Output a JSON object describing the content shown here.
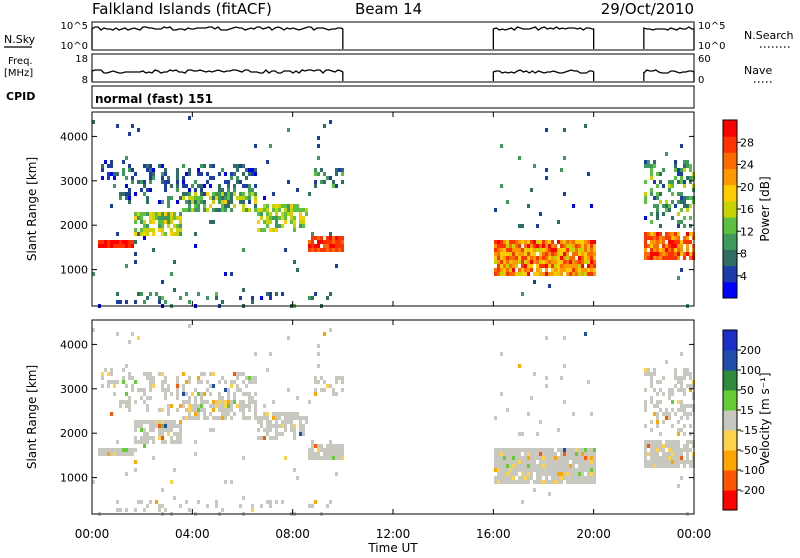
{
  "header": {
    "station": "Falkland Islands (fitACF)",
    "beam": "Beam 14",
    "date": "29/Oct/2010"
  },
  "summary_panels": {
    "nsky": {
      "left_label": "N.Sky",
      "left_ticks": [
        "10^5",
        "10^0"
      ],
      "right_label": "N.Search",
      "right_ticks": [
        "10^5",
        "10^0"
      ]
    },
    "freq": {
      "left_label_1": "Freq.",
      "left_label_2": "[MHz]",
      "left_ticks": [
        "18",
        "8"
      ],
      "right_label": "Nave",
      "right_ticks": [
        "60",
        "0"
      ]
    },
    "cpid": {
      "label": "CPID",
      "value": "normal (fast) 151"
    }
  },
  "colors": {
    "power": [
      "#0000ff",
      "#1c3caa",
      "#2e6e66",
      "#3e9a5a",
      "#5cc040",
      "#c8d400",
      "#ffcc00",
      "#ff9900",
      "#ff6a00",
      "#ff3300",
      "#ff0000"
    ],
    "velocity": [
      "#ff0000",
      "#ff5500",
      "#ffa500",
      "#ffd24a",
      "#c8c8c0",
      "#66cc33",
      "#2e8b3a",
      "#1f4fa8",
      "#1e2ec8"
    ]
  },
  "chart_data": [
    {
      "type": "heatmap",
      "name": "Power",
      "ylabel": "Slant Range [km]",
      "yticks": [
        "4000",
        "3000",
        "2000",
        "1000"
      ],
      "yrange": [
        180,
        4550
      ],
      "colorbar_label": "Power [dB]",
      "colorbar_ticks": [
        "28",
        "24",
        "20",
        "16",
        "12",
        "8",
        "4"
      ],
      "colorbar_range": [
        0,
        32
      ]
    },
    {
      "type": "heatmap",
      "name": "Velocity",
      "ylabel": "Slant Range [km]",
      "yticks": [
        "4000",
        "3000",
        "2000",
        "1000"
      ],
      "yrange": [
        180,
        4550
      ],
      "colorbar_label": "Velocity [m s⁻¹]",
      "colorbar_ticks": [
        "200",
        "100",
        "50",
        "15",
        "-15",
        "-50",
        "-100",
        "-200"
      ]
    }
  ],
  "xaxis": {
    "label": "Time UT",
    "ticks": [
      "00:00",
      "04:00",
      "08:00",
      "12:00",
      "16:00",
      "20:00",
      "00:00"
    ],
    "range_hours": [
      0,
      24
    ]
  },
  "data_segments_hours": [
    [
      0,
      10
    ],
    [
      16,
      20
    ],
    [
      22,
      24
    ]
  ]
}
